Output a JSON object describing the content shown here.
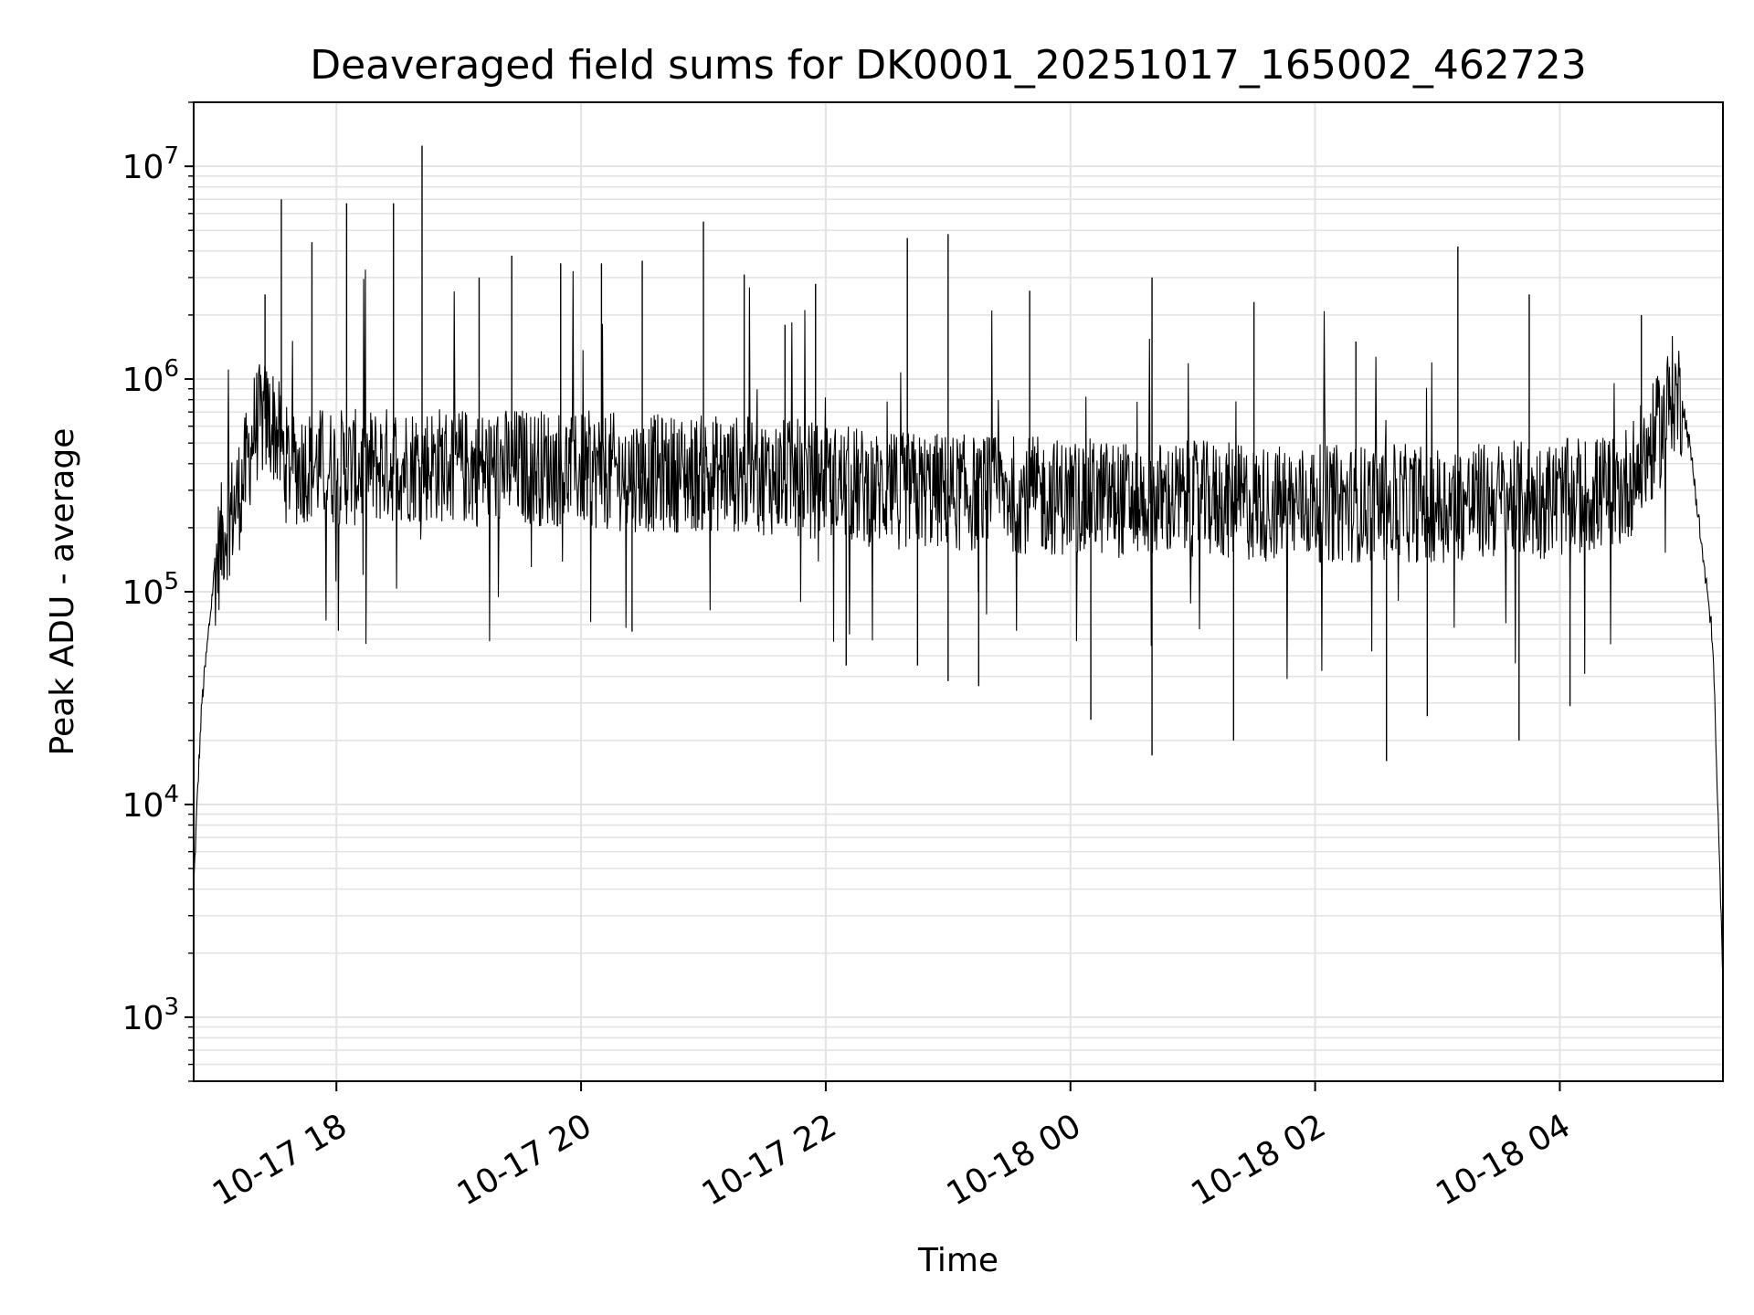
{
  "chart_data": {
    "type": "line",
    "title": "Deaveraged field sums for DK0001_20251017_165002_462723",
    "xlabel": "Time",
    "ylabel": "Peak ADU - average",
    "yscale": "log",
    "xlim": [
      "2025-10-17 16:50",
      "2025-10-18 05:20"
    ],
    "ylim": [
      500,
      20000000
    ],
    "grid": true,
    "legend": "none",
    "line_color": "#000000",
    "x_ticks": [
      {
        "value": "2025-10-17 18:00",
        "label": "10-17 18"
      },
      {
        "value": "2025-10-17 20:00",
        "label": "10-17 20"
      },
      {
        "value": "2025-10-17 22:00",
        "label": "10-17 22"
      },
      {
        "value": "2025-10-18 00:00",
        "label": "10-18 00"
      },
      {
        "value": "2025-10-18 02:00",
        "label": "10-18 02"
      },
      {
        "value": "2025-10-18 04:00",
        "label": "10-18 04"
      }
    ],
    "y_ticks": [
      {
        "value": 1000,
        "base": "10",
        "exp": "3"
      },
      {
        "value": 10000,
        "base": "10",
        "exp": "4"
      },
      {
        "value": 100000,
        "base": "10",
        "exp": "5"
      },
      {
        "value": 1000000,
        "base": "10",
        "exp": "6"
      },
      {
        "value": 10000000,
        "base": "10",
        "exp": "7"
      }
    ],
    "series": [
      {
        "x": [
          "2025-10-17 16:50",
          "2025-10-17 16:52",
          "2025-10-17 16:54",
          "2025-10-17 16:57",
          "2025-10-17 17:00",
          "2025-10-17 17:05",
          "2025-10-17 17:10",
          "2025-10-17 17:15",
          "2025-10-17 17:20",
          "2025-10-17 17:25",
          "2025-10-17 17:30",
          "2025-10-17 17:35",
          "2025-10-17 17:40",
          "2025-10-17 17:45",
          "2025-10-17 17:55",
          "2025-10-17 18:10",
          "2025-10-17 18:30",
          "2025-10-17 18:50",
          "2025-10-17 19:10",
          "2025-10-17 19:30",
          "2025-10-17 19:50",
          "2025-10-17 20:10",
          "2025-10-17 20:30",
          "2025-10-17 20:50",
          "2025-10-17 21:10",
          "2025-10-17 21:30",
          "2025-10-17 21:50",
          "2025-10-17 22:10",
          "2025-10-17 22:30",
          "2025-10-17 22:50",
          "2025-10-17 23:10",
          "2025-10-17 23:30",
          "2025-10-17 23:50",
          "2025-10-18 00:10",
          "2025-10-18 00:30",
          "2025-10-18 00:50",
          "2025-10-18 01:10",
          "2025-10-18 01:30",
          "2025-10-18 01:50",
          "2025-10-18 02:10",
          "2025-10-18 02:30",
          "2025-10-18 02:50",
          "2025-10-18 03:10",
          "2025-10-18 03:30",
          "2025-10-18 03:50",
          "2025-10-18 04:10",
          "2025-10-18 04:30",
          "2025-10-18 04:40",
          "2025-10-18 04:50",
          "2025-10-18 04:55",
          "2025-10-18 05:00",
          "2025-10-18 05:05",
          "2025-10-18 05:10",
          "2025-10-18 05:15",
          "2025-10-18 05:20"
        ],
        "y": [
          4000,
          12000,
          30000,
          60000,
          120000,
          200000,
          250000,
          350000,
          600000,
          650000,
          600000,
          400000,
          380000,
          400000,
          390000,
          380000,
          400000,
          400000,
          380000,
          390000,
          380000,
          370000,
          360000,
          360000,
          360000,
          350000,
          340000,
          320000,
          300000,
          300000,
          290000,
          290000,
          280000,
          280000,
          270000,
          270000,
          270000,
          260000,
          260000,
          260000,
          260000,
          260000,
          260000,
          270000,
          270000,
          280000,
          300000,
          400000,
          600000,
          850000,
          800000,
          400000,
          150000,
          60000,
          1500
        ],
        "spikes": [
          {
            "x": "2025-10-17 17:25",
            "y": 2500000
          },
          {
            "x": "2025-10-17 17:33",
            "y": 7000000
          },
          {
            "x": "2025-10-17 17:48",
            "y": 4400000
          },
          {
            "x": "2025-10-17 18:05",
            "y": 6700000
          },
          {
            "x": "2025-10-17 18:28",
            "y": 6700000
          },
          {
            "x": "2025-10-17 18:42",
            "y": 12500000
          },
          {
            "x": "2025-10-17 19:10",
            "y": 3000000
          },
          {
            "x": "2025-10-17 19:26",
            "y": 3800000
          },
          {
            "x": "2025-10-17 19:50",
            "y": 3500000
          },
          {
            "x": "2025-10-17 20:10",
            "y": 3500000
          },
          {
            "x": "2025-10-17 20:30",
            "y": 3600000
          },
          {
            "x": "2025-10-17 21:00",
            "y": 5500000
          },
          {
            "x": "2025-10-17 21:20",
            "y": 3100000
          },
          {
            "x": "2025-10-17 21:40",
            "y": 1800000
          },
          {
            "x": "2025-10-17 21:55",
            "y": 2800000
          },
          {
            "x": "2025-10-17 22:40",
            "y": 4600000
          },
          {
            "x": "2025-10-17 23:00",
            "y": 4800000
          },
          {
            "x": "2025-10-17 23:40",
            "y": 2600000
          },
          {
            "x": "2025-10-18 00:40",
            "y": 3000000
          },
          {
            "x": "2025-10-18 01:30",
            "y": 2300000
          },
          {
            "x": "2025-10-18 02:20",
            "y": 1500000
          },
          {
            "x": "2025-10-18 03:10",
            "y": 4200000
          },
          {
            "x": "2025-10-18 03:45",
            "y": 2500000
          },
          {
            "x": "2025-10-18 04:40",
            "y": 2000000
          }
        ],
        "dips": [
          {
            "x": "2025-10-17 20:25",
            "y": 65000
          },
          {
            "x": "2025-10-17 22:10",
            "y": 45000
          },
          {
            "x": "2025-10-17 22:45",
            "y": 45000
          },
          {
            "x": "2025-10-17 23:00",
            "y": 38000
          },
          {
            "x": "2025-10-17 23:15",
            "y": 36000
          },
          {
            "x": "2025-10-18 00:10",
            "y": 25000
          },
          {
            "x": "2025-10-18 00:40",
            "y": 17000
          },
          {
            "x": "2025-10-18 01:20",
            "y": 20000
          },
          {
            "x": "2025-10-18 02:35",
            "y": 16000
          },
          {
            "x": "2025-10-18 02:55",
            "y": 26000
          },
          {
            "x": "2025-10-18 03:40",
            "y": 20000
          },
          {
            "x": "2025-10-18 04:05",
            "y": 29000
          }
        ]
      }
    ]
  }
}
